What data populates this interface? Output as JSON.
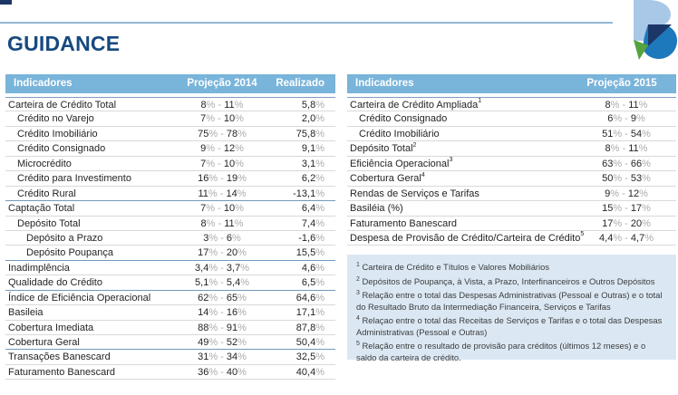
{
  "page": {
    "title": "GUIDANCE"
  },
  "logo": {
    "name": "banestes-b-logo"
  },
  "colors": {
    "header_bg": "#79b4da",
    "title_blue": "#17497f",
    "section_divider": "#7498bc",
    "row_divider": "#d7d9db",
    "unit_gray": "#a9abae",
    "footnote_bg": "#dbe8f4",
    "logo_light_blue": "#a9c7e7",
    "logo_blue": "#1e78bc",
    "logo_navy": "#1c3767",
    "logo_green": "#54a33e"
  },
  "tables": {
    "left": {
      "headers": {
        "indicator": "Indicadores",
        "projection": "Projeção 2014",
        "realized": "Realizado"
      },
      "unit": "%",
      "range_separator": " - ",
      "rows": [
        {
          "label": "Carteira de Crédito Total",
          "indent": 0,
          "low": "8",
          "high": "11",
          "realized": "5,8"
        },
        {
          "label": "Crédito no Varejo",
          "indent": 1,
          "low": "7",
          "high": "10",
          "realized": "2,0"
        },
        {
          "label": "Crédito Imobiliário",
          "indent": 1,
          "low": "75",
          "high": "78",
          "realized": "75,8"
        },
        {
          "label": "Crédito Consignado",
          "indent": 1,
          "low": "9",
          "high": "12",
          "realized": "9,1"
        },
        {
          "label": "Microcrédito",
          "indent": 1,
          "low": "7",
          "high": "10",
          "realized": "3,1"
        },
        {
          "label": "Crédito para Investimento",
          "indent": 1,
          "low": "16",
          "high": "19",
          "realized": "6,2"
        },
        {
          "label": "Crédito Rural",
          "indent": 1,
          "low": "11",
          "high": "14",
          "realized": "-13,1",
          "section_end": true
        },
        {
          "label": "Captação Total",
          "indent": 0,
          "low": "7",
          "high": "10",
          "realized": "6,4"
        },
        {
          "label": "Depósito Total",
          "indent": 1,
          "low": "8",
          "high": "11",
          "realized": "7,4"
        },
        {
          "label": "Depósito a Prazo",
          "indent": 2,
          "low": "3",
          "high": "6",
          "realized": "-1,6"
        },
        {
          "label": "Depósito Poupança",
          "indent": 2,
          "low": "17",
          "high": "20",
          "realized": "15,5",
          "section_end": true
        },
        {
          "label": "Inadimplência",
          "indent": 0,
          "low": "3,4",
          "high": "3,7",
          "realized": "4,6"
        },
        {
          "label": "Qualidade do Crédito",
          "indent": 0,
          "low": "5,1",
          "high": "5,4",
          "realized": "6,5",
          "section_end": true
        },
        {
          "label": "Índice de Eficiência Operacional",
          "indent": 0,
          "low": "62",
          "high": "65",
          "realized": "64,6"
        },
        {
          "label": "Basileia",
          "indent": 0,
          "low": "14",
          "high": "16",
          "realized": "17,1"
        },
        {
          "label": "Cobertura Imediata",
          "indent": 0,
          "low": "88",
          "high": "91",
          "realized": "87,8"
        },
        {
          "label": "Cobertura Geral",
          "indent": 0,
          "low": "49",
          "high": "52",
          "realized": "50,4",
          "section_end": true
        },
        {
          "label": "Transações Banescard",
          "indent": 0,
          "low": "31",
          "high": "34",
          "realized": "32,5"
        },
        {
          "label": "Faturamento Banescard",
          "indent": 0,
          "low": "36",
          "high": "40",
          "realized": "40,4"
        }
      ]
    },
    "right": {
      "headers": {
        "indicator": "Indicadores",
        "projection": "Projeção 2015"
      },
      "unit": "%",
      "range_separator": " - ",
      "rows": [
        {
          "label": "Carteira de Crédito Ampliada",
          "sup": "1",
          "indent": 0,
          "low": "8",
          "high": "11"
        },
        {
          "label": "Crédito Consignado",
          "indent": 1,
          "low": "6",
          "high": "9"
        },
        {
          "label": "Crédito Imobiliário",
          "indent": 1,
          "low": "51",
          "high": "54"
        },
        {
          "label": "Depósito Total",
          "sup": "2",
          "indent": 0,
          "low": "8",
          "high": "11"
        },
        {
          "label": "Eficiência Operacional",
          "sup": "3",
          "indent": 0,
          "low": "63",
          "high": "66"
        },
        {
          "label": "Cobertura Geral",
          "sup": "4",
          "indent": 0,
          "low": "50",
          "high": "53"
        },
        {
          "label": "Rendas de Serviços e Tarifas",
          "indent": 0,
          "low": "9",
          "high": "12"
        },
        {
          "label": "Basiléia (%)",
          "indent": 0,
          "low": "15",
          "high": "17"
        },
        {
          "label": "Faturamento Banescard",
          "indent": 0,
          "low": "17",
          "high": "20"
        },
        {
          "label": "Despesa de Provisão de Crédito/Carteira de Crédito",
          "sup": "5",
          "indent": 0,
          "low": "4,4",
          "high": "4,7"
        }
      ]
    }
  },
  "footnotes": [
    {
      "sup": "1",
      "text": "Carteira de Crédito e Títulos e Valores Mobiliários"
    },
    {
      "sup": "2",
      "text": "Depósitos de Poupança, à Vista, a Prazo, Interfinanceiros e Outros Depósitos"
    },
    {
      "sup": "3",
      "text": "Relação entre o total das Despesas Administrativas (Pessoal e Outras) e o total do Resultado Bruto da Intermediação Financeira, Serviços e Tarifas"
    },
    {
      "sup": "4",
      "text": "Relaçao entre o total das Receitas de Serviços e Tarifas e o total das Despesas Administrativas (Pessoal e Outras)"
    },
    {
      "sup": "5",
      "text": "Relação entre o resultado de provisão para créditos (últimos 12 meses) e o saldo da carteira de crédito."
    }
  ]
}
